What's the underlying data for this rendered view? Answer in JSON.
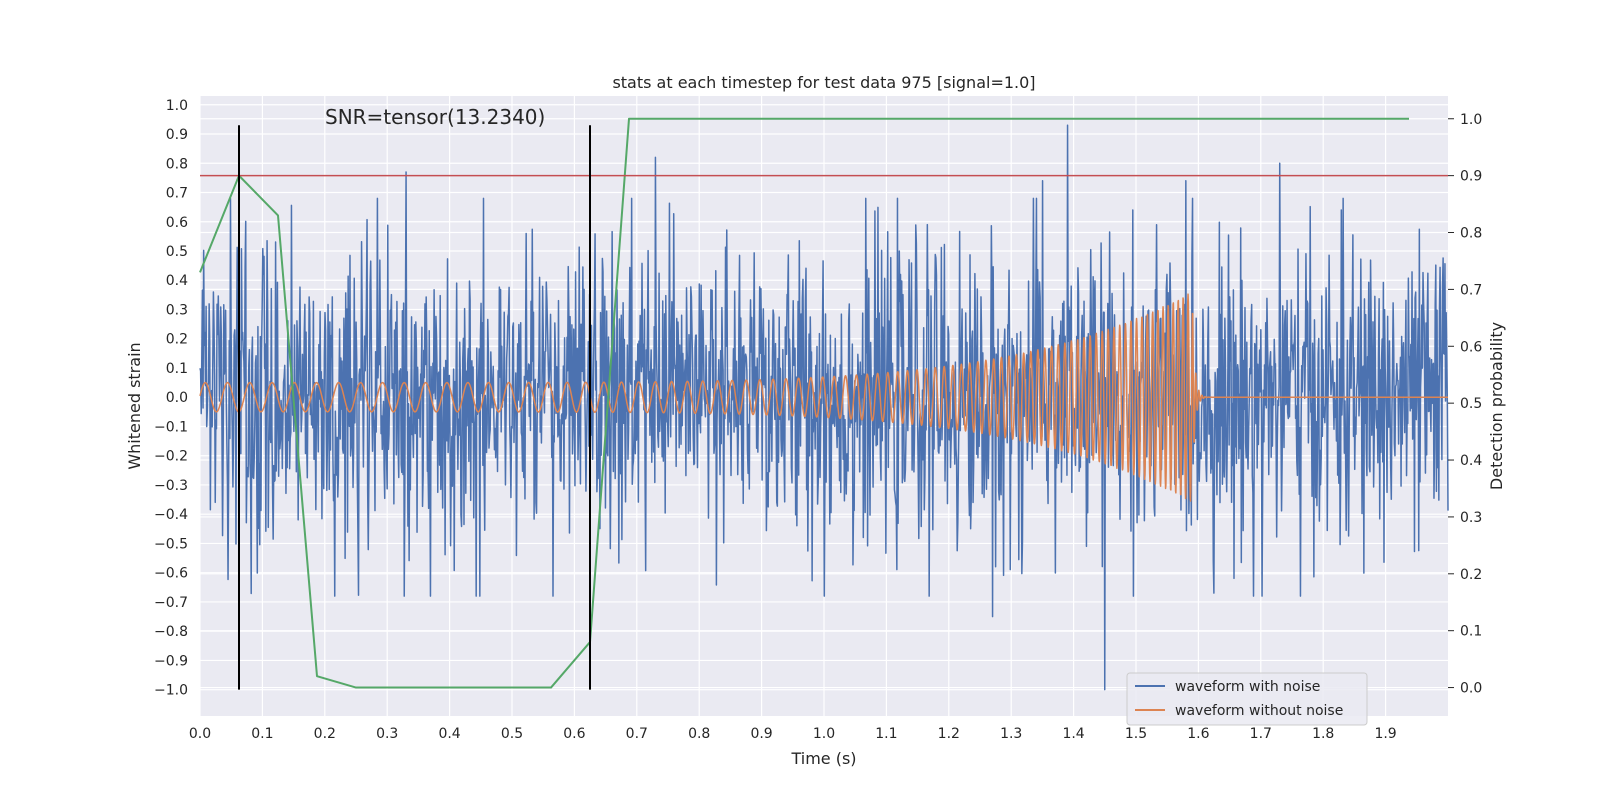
{
  "chart_data": {
    "type": "line",
    "title": "stats at each timestep for test data 975 [signal=1.0]",
    "xlabel": "Time (s)",
    "ylabel": "Whitened strain",
    "y2label": "Detection probability",
    "xlim": [
      0.0,
      2.0
    ],
    "ylim": [
      -1.09,
      1.03
    ],
    "y2lim": [
      -0.05,
      1.04
    ],
    "xticks": [
      0.0,
      0.1,
      0.2,
      0.3,
      0.4,
      0.5,
      0.6,
      0.7,
      0.8,
      0.9,
      1.0,
      1.1,
      1.2,
      1.3,
      1.4,
      1.5,
      1.6,
      1.7,
      1.8,
      1.9
    ],
    "yticks": [
      -1.0,
      -0.9,
      -0.8,
      -0.7,
      -0.6,
      -0.5,
      -0.4,
      -0.3,
      -0.2,
      -0.1,
      0.0,
      0.1,
      0.2,
      0.3,
      0.4,
      0.5,
      0.6,
      0.7,
      0.8,
      0.9,
      1.0
    ],
    "y2ticks": [
      0.0,
      0.1,
      0.2,
      0.3,
      0.4,
      0.5,
      0.6,
      0.7,
      0.8,
      0.9,
      1.0
    ],
    "grid": true,
    "legend": {
      "placement": "lower-right",
      "entries": [
        "waveform with noise",
        "waveform without noise"
      ]
    },
    "annotation": "SNR=tensor(13.2340)",
    "threshold": {
      "axis": "y2",
      "value": 0.9,
      "color": "#c44e52"
    },
    "vlines": [
      {
        "x": 0.0625,
        "ymin": -1.0,
        "ymax": 0.93
      },
      {
        "x": 0.625,
        "ymin": -1.0,
        "ymax": 0.93
      }
    ],
    "series": [
      {
        "name": "waveform with noise",
        "color": "#4c72b0",
        "axis": "y",
        "kind": "noisy",
        "x_start": 0.0,
        "x_end": 2.0,
        "n": 2048,
        "amplitude_std": 0.25,
        "peaks": [
          [
            1.39,
            0.93
          ],
          [
            1.45,
            -1.0
          ],
          [
            0.73,
            0.82
          ],
          [
            1.73,
            0.8
          ],
          [
            0.33,
            0.77
          ],
          [
            1.27,
            -0.75
          ],
          [
            1.35,
            0.74
          ],
          [
            1.58,
            0.74
          ]
        ]
      },
      {
        "name": "waveform without noise",
        "color": "#dd8452",
        "axis": "y",
        "kind": "chirp",
        "x_start": 0.0,
        "x_end": 2.0,
        "n": 4000,
        "merger_time": 1.59,
        "f_start": 28,
        "f_end": 130,
        "amp_start": 0.05,
        "amp_end": 0.36
      },
      {
        "name": "detection probability",
        "color": "#55a868",
        "axis": "y2",
        "kind": "line",
        "x": [
          0.0,
          0.0625,
          0.125,
          0.1875,
          0.25,
          0.3125,
          0.375,
          0.4375,
          0.5,
          0.5625,
          0.625,
          0.6875,
          0.75,
          0.8125,
          0.875,
          0.9375,
          1.0,
          1.0625,
          1.125,
          1.1875,
          1.25,
          1.3125,
          1.375,
          1.4375,
          1.5,
          1.5625,
          1.625,
          1.6875,
          1.75,
          1.8125,
          1.875,
          1.9375
        ],
        "y": [
          0.73,
          0.9,
          0.83,
          0.02,
          0.0,
          0.0,
          0.0,
          0.0,
          0.0,
          0.0,
          0.08,
          1.0,
          1.0,
          1.0,
          1.0,
          1.0,
          1.0,
          1.0,
          1.0,
          1.0,
          1.0,
          1.0,
          1.0,
          1.0,
          1.0,
          1.0,
          1.0,
          1.0,
          1.0,
          1.0,
          1.0,
          1.0
        ]
      }
    ]
  }
}
